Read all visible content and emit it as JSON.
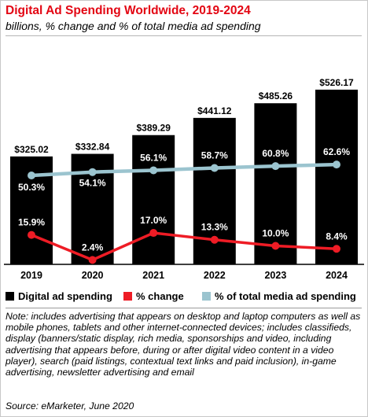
{
  "title": "Digital Ad Spending Worldwide, 2019-2024",
  "subtitle": "billions, % change and % of total media ad spending",
  "colors": {
    "title": "#e30613",
    "bars": "#000000",
    "change_line": "#ee1c25",
    "share_line": "#9bc4cf"
  },
  "chart_data": {
    "type": "bar",
    "categories": [
      "2019",
      "2020",
      "2021",
      "2022",
      "2023",
      "2024"
    ],
    "series": [
      {
        "name": "Digital ad spending",
        "type": "bar",
        "values": [
          325.02,
          332.84,
          389.29,
          441.12,
          485.26,
          526.17
        ],
        "labels": [
          "$325.02",
          "$332.84",
          "$389.29",
          "$441.12",
          "$485.26",
          "$526.17"
        ]
      },
      {
        "name": "% change",
        "type": "line",
        "values": [
          15.9,
          2.4,
          17.0,
          13.3,
          10.0,
          8.4
        ],
        "labels": [
          "15.9%",
          "2.4%",
          "17.0%",
          "13.3%",
          "10.0%",
          "8.4%"
        ]
      },
      {
        "name": "% of total media ad spending",
        "type": "line",
        "values": [
          50.3,
          54.1,
          56.1,
          58.7,
          60.8,
          62.6
        ],
        "labels": [
          "50.3%",
          "54.1%",
          "56.1%",
          "58.7%",
          "60.8%",
          "62.6%"
        ]
      }
    ],
    "legend_position": "bottom",
    "grid": false
  },
  "legend": {
    "bars": "Digital ad spending",
    "change": "% change",
    "share": "% of total media ad spending"
  },
  "note": "Note: includes advertising that appears on desktop and laptop computers as well as mobile phones, tablets and other internet-connected devices; includes classifieds, display (banners/static display, rich media, sponsorships and video, including advertising that appears before, during or after digital video content in a video player), search (paid listings, contextual text links and paid inclusion), in-game advertising, newsletter advertising and email",
  "source": "Source: eMarketer, June 2020"
}
